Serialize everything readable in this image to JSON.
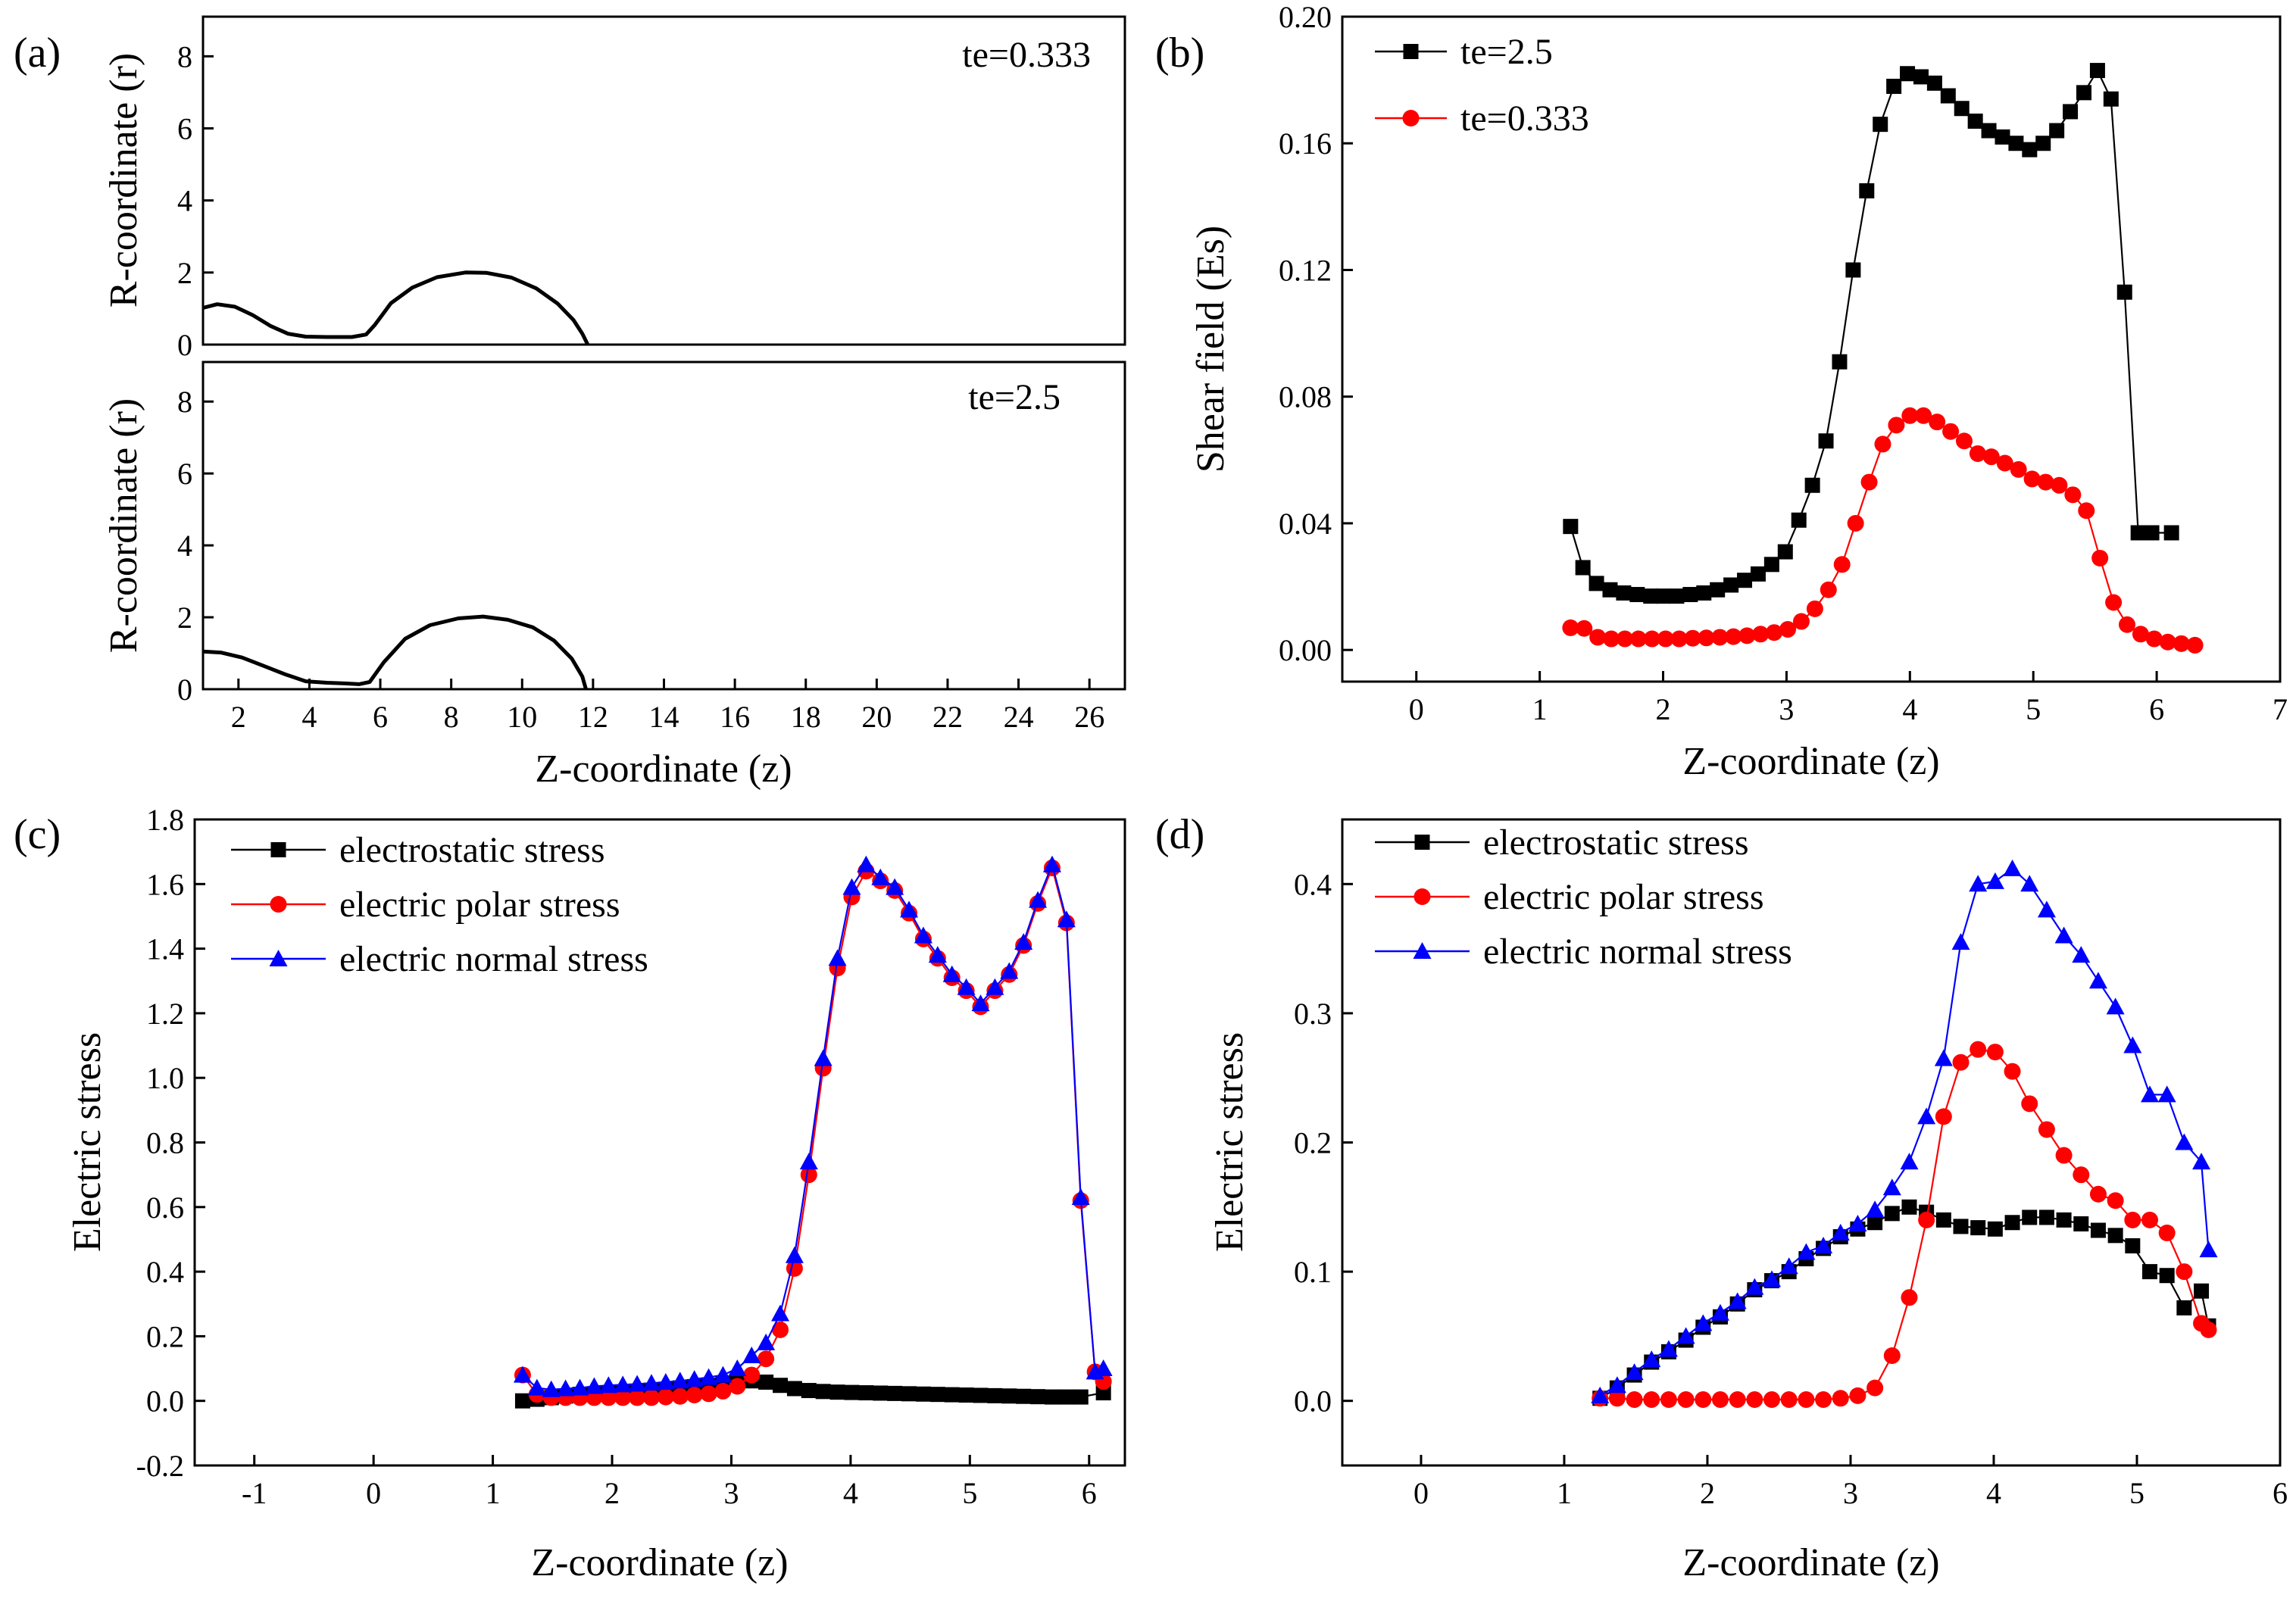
{
  "panel_labels": {
    "a": "(a)",
    "b": "(b)",
    "c": "(c)",
    "d": "(d)"
  },
  "chart_data": [
    {
      "id": "a_top",
      "type": "line",
      "ylabel": "R-coordinate (r)",
      "xlim": [
        1,
        27
      ],
      "ylim": [
        0,
        9.1
      ],
      "xticks": [],
      "yticks": [
        0,
        2,
        4,
        6,
        8
      ],
      "annotation": "te=0.333",
      "series": [
        {
          "color": "#000000",
          "marker": "none",
          "x": [
            1.0,
            1.4,
            1.9,
            2.4,
            2.9,
            3.4,
            3.9,
            4.5,
            5.2,
            5.6,
            5.85,
            6.3,
            6.9,
            7.6,
            8.4,
            9.0,
            9.7,
            10.4,
            11.0,
            11.45,
            11.7,
            11.85
          ],
          "y": [
            1.02,
            1.12,
            1.05,
            0.82,
            0.52,
            0.3,
            0.22,
            0.21,
            0.21,
            0.28,
            0.55,
            1.15,
            1.58,
            1.87,
            2.0,
            1.99,
            1.86,
            1.56,
            1.14,
            0.68,
            0.3,
            0.0
          ]
        }
      ]
    },
    {
      "id": "a_bottom",
      "type": "line",
      "xlabel": "Z-coordinate (z)",
      "ylabel": "R-coordinate (r)",
      "xlim": [
        1,
        27
      ],
      "ylim": [
        0,
        9.1
      ],
      "xticks": [
        2,
        4,
        6,
        8,
        10,
        12,
        14,
        16,
        18,
        20,
        22,
        24,
        26
      ],
      "yticks": [
        0,
        2,
        4,
        6,
        8
      ],
      "annotation": "te=2.5",
      "series": [
        {
          "color": "#000000",
          "marker": "none",
          "x": [
            1.0,
            1.5,
            2.1,
            2.7,
            3.3,
            3.9,
            4.5,
            5.0,
            5.4,
            5.7,
            6.1,
            6.7,
            7.4,
            8.2,
            8.9,
            9.6,
            10.3,
            10.9,
            11.4,
            11.7,
            11.8
          ],
          "y": [
            1.05,
            1.02,
            0.88,
            0.65,
            0.42,
            0.22,
            0.18,
            0.16,
            0.14,
            0.2,
            0.75,
            1.4,
            1.78,
            1.97,
            2.02,
            1.93,
            1.72,
            1.35,
            0.85,
            0.35,
            0.0
          ]
        }
      ]
    },
    {
      "id": "b",
      "type": "line",
      "xlabel": "Z-coordinate (z)",
      "ylabel": "Shear field (Es)",
      "xlim": [
        -0.6,
        7
      ],
      "ylim": [
        -0.01,
        0.2
      ],
      "xticks": [
        0,
        1,
        2,
        3,
        4,
        5,
        6,
        7
      ],
      "yticks": [
        0.0,
        0.04,
        0.08,
        0.12,
        0.16,
        0.2
      ],
      "ytick_labels": [
        "0.00",
        "0.04",
        "0.08",
        "0.12",
        "0.16",
        "0.20"
      ],
      "legend_position": "top-left",
      "series": [
        {
          "name": "te=2.5",
          "color": "#000000",
          "marker": "square",
          "x": [
            1.25,
            1.35,
            1.46,
            1.57,
            1.68,
            1.79,
            1.9,
            2.0,
            2.11,
            2.22,
            2.33,
            2.44,
            2.55,
            2.66,
            2.77,
            2.88,
            2.99,
            3.1,
            3.21,
            3.32,
            3.43,
            3.54,
            3.65,
            3.76,
            3.87,
            3.98,
            4.09,
            4.2,
            4.31,
            4.42,
            4.53,
            4.64,
            4.75,
            4.86,
            4.97,
            5.08,
            5.19,
            5.3,
            5.41,
            5.52,
            5.63,
            5.74,
            5.85,
            5.96,
            6.12
          ],
          "y": [
            0.039,
            0.026,
            0.021,
            0.019,
            0.018,
            0.0175,
            0.017,
            0.017,
            0.017,
            0.0175,
            0.018,
            0.019,
            0.0205,
            0.022,
            0.024,
            0.027,
            0.031,
            0.041,
            0.052,
            0.066,
            0.091,
            0.12,
            0.145,
            0.166,
            0.178,
            0.182,
            0.181,
            0.179,
            0.175,
            0.171,
            0.167,
            0.164,
            0.162,
            0.16,
            0.158,
            0.16,
            0.164,
            0.17,
            0.176,
            0.183,
            0.174,
            0.113,
            0.037,
            0.037,
            0.037
          ]
        },
        {
          "name": "te=0.333",
          "color": "#ff0000",
          "marker": "circle",
          "x": [
            1.25,
            1.36,
            1.47,
            1.58,
            1.69,
            1.8,
            1.91,
            2.02,
            2.13,
            2.24,
            2.35,
            2.46,
            2.57,
            2.68,
            2.79,
            2.9,
            3.01,
            3.12,
            3.23,
            3.34,
            3.45,
            3.56,
            3.67,
            3.78,
            3.89,
            4.0,
            4.11,
            4.22,
            4.33,
            4.44,
            4.55,
            4.66,
            4.77,
            4.88,
            4.99,
            5.1,
            5.21,
            5.32,
            5.43,
            5.54,
            5.65,
            5.76,
            5.87,
            5.98,
            6.09,
            6.2,
            6.31
          ],
          "y": [
            0.007,
            0.0068,
            0.004,
            0.0035,
            0.0035,
            0.0035,
            0.0035,
            0.0035,
            0.0035,
            0.0037,
            0.0038,
            0.004,
            0.0042,
            0.0045,
            0.005,
            0.0055,
            0.0065,
            0.009,
            0.013,
            0.019,
            0.027,
            0.04,
            0.053,
            0.065,
            0.071,
            0.074,
            0.074,
            0.072,
            0.069,
            0.066,
            0.062,
            0.061,
            0.059,
            0.057,
            0.054,
            0.053,
            0.052,
            0.049,
            0.044,
            0.029,
            0.015,
            0.008,
            0.005,
            0.0035,
            0.0025,
            0.002,
            0.0015
          ]
        }
      ]
    },
    {
      "id": "c",
      "type": "line",
      "xlabel": "Z-coordinate (z)",
      "ylabel": "Electric stress",
      "xlim": [
        -1.5,
        6.3
      ],
      "ylim": [
        -0.2,
        1.8
      ],
      "xticks": [
        -1,
        0,
        1,
        2,
        3,
        4,
        5,
        6
      ],
      "yticks": [
        -0.2,
        0.0,
        0.2,
        0.4,
        0.6,
        0.8,
        1.0,
        1.2,
        1.4,
        1.6,
        1.8
      ],
      "ytick_labels": [
        "-0.2",
        "0.0",
        "0.2",
        "0.4",
        "0.6",
        "0.8",
        "1.0",
        "1.2",
        "1.4",
        "1.6",
        "1.8"
      ],
      "legend_position": "top-left",
      "series": [
        {
          "name": "electrostatic stress",
          "color": "#000000",
          "marker": "square",
          "x": [
            1.25,
            1.37,
            1.49,
            1.61,
            1.73,
            1.85,
            1.97,
            2.09,
            2.21,
            2.33,
            2.45,
            2.57,
            2.69,
            2.81,
            2.93,
            3.05,
            3.17,
            3.29,
            3.41,
            3.53,
            3.65,
            3.77,
            3.89,
            4.01,
            4.13,
            4.25,
            4.37,
            4.49,
            4.61,
            4.73,
            4.85,
            4.97,
            5.09,
            5.21,
            5.33,
            5.45,
            5.57,
            5.69,
            5.81,
            5.93,
            6.12
          ],
          "y": [
            0.0,
            0.005,
            0.01,
            0.015,
            0.02,
            0.022,
            0.025,
            0.027,
            0.03,
            0.033,
            0.036,
            0.04,
            0.044,
            0.048,
            0.053,
            0.058,
            0.062,
            0.058,
            0.048,
            0.038,
            0.032,
            0.029,
            0.027,
            0.026,
            0.025,
            0.024,
            0.023,
            0.022,
            0.021,
            0.02,
            0.019,
            0.018,
            0.017,
            0.016,
            0.015,
            0.014,
            0.013,
            0.012,
            0.012,
            0.012,
            0.025
          ]
        },
        {
          "name": "electric polar stress",
          "color": "#ff0000",
          "marker": "circle",
          "x": [
            1.25,
            1.37,
            1.49,
            1.61,
            1.73,
            1.85,
            1.97,
            2.09,
            2.21,
            2.33,
            2.45,
            2.57,
            2.69,
            2.81,
            2.93,
            3.05,
            3.17,
            3.29,
            3.41,
            3.53,
            3.65,
            3.77,
            3.89,
            4.01,
            4.13,
            4.25,
            4.37,
            4.49,
            4.61,
            4.73,
            4.85,
            4.97,
            5.09,
            5.21,
            5.33,
            5.45,
            5.57,
            5.69,
            5.81,
            5.93,
            6.05,
            6.12
          ],
          "y": [
            0.08,
            0.02,
            0.01,
            0.01,
            0.01,
            0.01,
            0.01,
            0.01,
            0.01,
            0.01,
            0.012,
            0.014,
            0.018,
            0.022,
            0.03,
            0.045,
            0.08,
            0.13,
            0.22,
            0.41,
            0.7,
            1.03,
            1.34,
            1.56,
            1.64,
            1.61,
            1.58,
            1.51,
            1.43,
            1.37,
            1.31,
            1.27,
            1.22,
            1.27,
            1.32,
            1.41,
            1.54,
            1.65,
            1.48,
            0.62,
            0.09,
            0.06
          ]
        },
        {
          "name": "electric normal stress",
          "color": "#0000ff",
          "marker": "triangle",
          "x": [
            1.25,
            1.37,
            1.49,
            1.61,
            1.73,
            1.85,
            1.97,
            2.09,
            2.21,
            2.33,
            2.45,
            2.57,
            2.69,
            2.81,
            2.93,
            3.05,
            3.17,
            3.29,
            3.41,
            3.53,
            3.65,
            3.77,
            3.89,
            4.01,
            4.13,
            4.25,
            4.37,
            4.49,
            4.61,
            4.73,
            4.85,
            4.97,
            5.09,
            5.21,
            5.33,
            5.45,
            5.57,
            5.69,
            5.81,
            5.93,
            6.05,
            6.12
          ],
          "y": [
            0.08,
            0.04,
            0.035,
            0.038,
            0.04,
            0.045,
            0.048,
            0.05,
            0.052,
            0.055,
            0.058,
            0.062,
            0.067,
            0.073,
            0.08,
            0.1,
            0.14,
            0.18,
            0.27,
            0.45,
            0.74,
            1.06,
            1.37,
            1.59,
            1.66,
            1.62,
            1.59,
            1.52,
            1.44,
            1.38,
            1.32,
            1.28,
            1.23,
            1.28,
            1.33,
            1.42,
            1.55,
            1.66,
            1.49,
            0.63,
            0.09,
            0.1
          ]
        }
      ]
    },
    {
      "id": "d",
      "type": "line",
      "xlabel": "Z-coordinate (z)",
      "ylabel": "Electric stress",
      "xlim": [
        -0.55,
        6
      ],
      "ylim": [
        -0.05,
        0.45
      ],
      "xticks": [
        0,
        1,
        2,
        3,
        4,
        5,
        6
      ],
      "yticks": [
        0.0,
        0.1,
        0.2,
        0.3,
        0.4
      ],
      "ytick_labels": [
        "0.0",
        "0.1",
        "0.2",
        "0.3",
        "0.4"
      ],
      "legend_position": "top-left",
      "series": [
        {
          "name": "electrostatic stress",
          "color": "#000000",
          "marker": "square",
          "x": [
            1.25,
            1.37,
            1.49,
            1.61,
            1.73,
            1.85,
            1.97,
            2.09,
            2.21,
            2.33,
            2.45,
            2.57,
            2.69,
            2.81,
            2.93,
            3.05,
            3.17,
            3.29,
            3.41,
            3.53,
            3.65,
            3.77,
            3.89,
            4.01,
            4.13,
            4.25,
            4.37,
            4.49,
            4.61,
            4.73,
            4.85,
            4.97,
            5.09,
            5.21,
            5.33,
            5.45,
            5.5
          ],
          "y": [
            0.002,
            0.01,
            0.02,
            0.03,
            0.038,
            0.047,
            0.057,
            0.065,
            0.075,
            0.086,
            0.093,
            0.1,
            0.11,
            0.118,
            0.127,
            0.133,
            0.138,
            0.145,
            0.15,
            0.146,
            0.14,
            0.135,
            0.134,
            0.133,
            0.138,
            0.142,
            0.142,
            0.14,
            0.137,
            0.132,
            0.128,
            0.12,
            0.1,
            0.097,
            0.072,
            0.085,
            0.058
          ]
        },
        {
          "name": "electric polar stress",
          "color": "#ff0000",
          "marker": "circle",
          "x": [
            1.25,
            1.37,
            1.49,
            1.61,
            1.73,
            1.85,
            1.97,
            2.09,
            2.21,
            2.33,
            2.45,
            2.57,
            2.69,
            2.81,
            2.93,
            3.05,
            3.17,
            3.29,
            3.41,
            3.53,
            3.65,
            3.77,
            3.89,
            4.01,
            4.13,
            4.25,
            4.37,
            4.49,
            4.61,
            4.73,
            4.85,
            4.97,
            5.09,
            5.21,
            5.33,
            5.45,
            5.5
          ],
          "y": [
            0.002,
            0.002,
            0.001,
            0.001,
            0.001,
            0.001,
            0.001,
            0.001,
            0.001,
            0.001,
            0.001,
            0.001,
            0.001,
            0.001,
            0.002,
            0.004,
            0.01,
            0.035,
            0.08,
            0.14,
            0.22,
            0.262,
            0.272,
            0.27,
            0.255,
            0.23,
            0.21,
            0.19,
            0.175,
            0.16,
            0.155,
            0.14,
            0.14,
            0.13,
            0.1,
            0.06,
            0.055
          ]
        },
        {
          "name": "electric normal stress",
          "color": "#0000ff",
          "marker": "triangle",
          "x": [
            1.25,
            1.37,
            1.49,
            1.61,
            1.73,
            1.85,
            1.97,
            2.09,
            2.21,
            2.33,
            2.45,
            2.57,
            2.69,
            2.81,
            2.93,
            3.05,
            3.17,
            3.29,
            3.41,
            3.53,
            3.65,
            3.77,
            3.89,
            4.01,
            4.13,
            4.25,
            4.37,
            4.49,
            4.61,
            4.73,
            4.85,
            4.97,
            5.09,
            5.21,
            5.33,
            5.45,
            5.5
          ],
          "y": [
            0.004,
            0.012,
            0.022,
            0.032,
            0.04,
            0.05,
            0.06,
            0.068,
            0.077,
            0.088,
            0.094,
            0.104,
            0.115,
            0.12,
            0.13,
            0.137,
            0.148,
            0.165,
            0.185,
            0.22,
            0.265,
            0.355,
            0.4,
            0.402,
            0.412,
            0.4,
            0.38,
            0.36,
            0.345,
            0.325,
            0.305,
            0.275,
            0.237,
            0.237,
            0.2,
            0.185,
            0.117
          ]
        }
      ]
    }
  ]
}
